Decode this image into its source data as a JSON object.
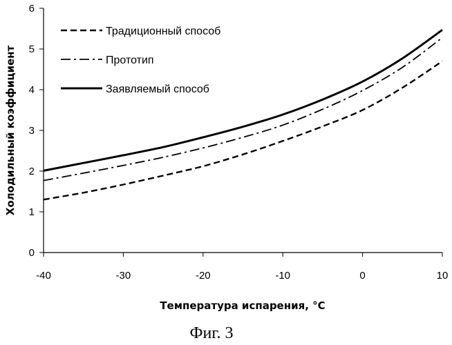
{
  "chart_data": {
    "type": "line",
    "title": "",
    "xlabel": "Температура испарения, °C",
    "ylabel": "Холодильный коэффициент",
    "xlim": [
      -40,
      10
    ],
    "ylim": [
      0,
      6
    ],
    "xticks": [
      -40,
      -30,
      -20,
      -10,
      0,
      10
    ],
    "yticks": [
      0,
      1,
      2,
      3,
      4,
      5,
      6
    ],
    "grid": false,
    "legend_position": "top-left",
    "x": [
      -40,
      -35,
      -30,
      -25,
      -20,
      -15,
      -10,
      -5,
      0,
      5,
      10
    ],
    "series": [
      {
        "name": "Традиционный способ",
        "style": "dashed",
        "stroke_width": 2.4,
        "color": "#000000",
        "values": [
          1.3,
          1.47,
          1.67,
          1.89,
          2.12,
          2.41,
          2.74,
          3.1,
          3.5,
          4.05,
          4.7
        ]
      },
      {
        "name": "Прототип",
        "style": "dash-dot",
        "stroke_width": 1.8,
        "color": "#000000",
        "values": [
          1.77,
          1.95,
          2.14,
          2.34,
          2.57,
          2.83,
          3.13,
          3.52,
          3.98,
          4.55,
          5.28
        ]
      },
      {
        "name": "Заявляемый способ",
        "style": "solid",
        "stroke_width": 3,
        "color": "#000000",
        "values": [
          2.01,
          2.2,
          2.39,
          2.59,
          2.83,
          3.09,
          3.39,
          3.76,
          4.2,
          4.77,
          5.47
        ]
      }
    ]
  },
  "caption": "Фиг. 3"
}
